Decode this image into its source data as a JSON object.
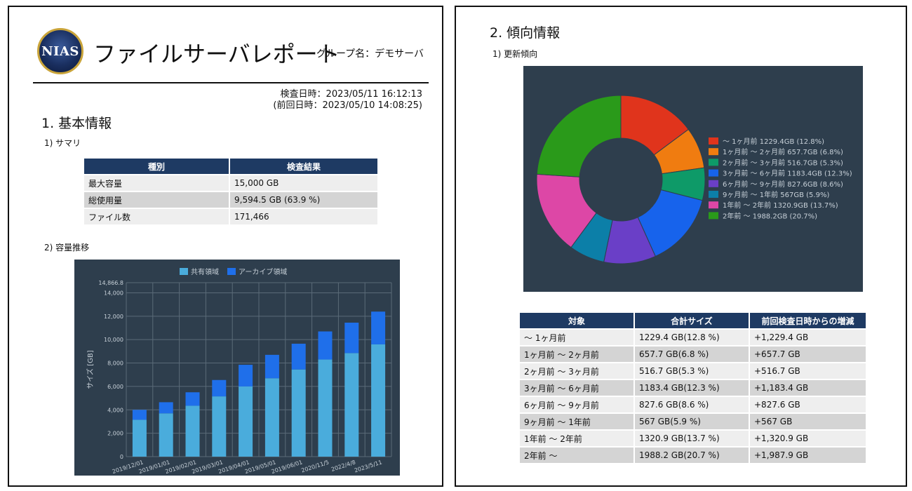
{
  "page1": {
    "logo_text": "NIAS",
    "title": "ファイルサーバレポート",
    "group_name": "グループ名：デモサーバ",
    "inspect_date": "検査日時：2023/05/11 16:12:13",
    "prev_date": "(前回日時：2023/05/10 14:08:25)",
    "section1_heading": "1. 基本情報",
    "summary_heading": "1) サマリ",
    "summary_table": {
      "headers": [
        "種別",
        "検査結果"
      ],
      "rows": [
        [
          "最大容量",
          "15,000 GB"
        ],
        [
          "総使用量",
          "9,594.5 GB (63.9 %)"
        ],
        [
          "ファイル数",
          "171,466"
        ]
      ]
    },
    "capacity_heading": "2) 容量推移"
  },
  "page2": {
    "section2_heading": "2. 傾向情報",
    "update_heading": "1) 更新傾向",
    "trend_table": {
      "headers": [
        "対象",
        "合計サイズ",
        "前回検査日時からの増減"
      ],
      "rows": [
        [
          "〜 1ヶ月前",
          "1229.4 GB(12.8 %)",
          "+1,229.4 GB"
        ],
        [
          "1ヶ月前 〜 2ヶ月前",
          "657.7 GB(6.8 %)",
          "+657.7 GB"
        ],
        [
          "2ヶ月前 〜 3ヶ月前",
          "516.7 GB(5.3 %)",
          "+516.7 GB"
        ],
        [
          "3ヶ月前 〜 6ヶ月前",
          "1183.4 GB(12.3 %)",
          "+1,183.4 GB"
        ],
        [
          "6ヶ月前 〜 9ヶ月前",
          "827.6 GB(8.6 %)",
          "+827.6 GB"
        ],
        [
          "9ヶ月前 〜 1年前",
          "567 GB(5.9 %)",
          "+567 GB"
        ],
        [
          "1年前 〜 2年前",
          "1320.9 GB(13.7 %)",
          "+1,320.9 GB"
        ],
        [
          "2年前 〜",
          "1988.2 GB(20.7 %)",
          "+1,987.9 GB"
        ]
      ]
    }
  },
  "chart_data": [
    {
      "type": "bar",
      "stacked": true,
      "categories": [
        "2019/12/01",
        "2019/01/01",
        "2019/02/01",
        "2019/03/01",
        "2019/04/01",
        "2019/05/01",
        "2019/06/01",
        "2020/11/5",
        "2022/4/8",
        "2023/5/11"
      ],
      "series": [
        {
          "name": "共有領域",
          "color": "#4aacdc",
          "values": [
            3150,
            3700,
            4350,
            5150,
            6000,
            6700,
            7450,
            8300,
            8850,
            9594.5
          ]
        },
        {
          "name": "アーカイブ領域",
          "color": "#1f6fea",
          "values": [
            850,
            950,
            1150,
            1400,
            1850,
            2000,
            2200,
            2400,
            2600,
            2800
          ]
        }
      ],
      "ylabel": "サイズ [GB]",
      "ylim": [
        0,
        14866.8
      ],
      "yticks": [
        0,
        2000,
        4000,
        6000,
        8000,
        10000,
        12000,
        14000
      ],
      "ytick_labels": [
        "0",
        "2,000",
        "4,000",
        "6,000",
        "8,000",
        "10,000",
        "12,000",
        "14,000"
      ],
      "ymax_label": "14,866.8",
      "legend": "top",
      "grid": true,
      "background": "#2e3e4d"
    },
    {
      "type": "pie",
      "donut": true,
      "labels": [
        "〜 1ヶ月前 1229.4GB (12.8%)",
        "1ヶ月前 〜 2ヶ月前 657.7GB (6.8%)",
        "2ヶ月前 〜 3ヶ月前 516.7GB (5.3%)",
        "3ヶ月前 〜 6ヶ月前 1183.4GB (12.3%)",
        "6ヶ月前 〜 9ヶ月前 827.6GB (8.6%)",
        "9ヶ月前 〜 1年前 567GB (5.9%)",
        "1年前 〜 2年前 1320.9GB (13.7%)",
        "2年前 〜 1988.2GB (20.7%)"
      ],
      "values": [
        1229.4,
        657.7,
        516.7,
        1183.4,
        827.6,
        567,
        1320.9,
        1988.2
      ],
      "colors": [
        "#e0341c",
        "#f07c10",
        "#0e9a68",
        "#1763ec",
        "#6a3fc7",
        "#0c7fa8",
        "#dd47a6",
        "#2a9a1a"
      ],
      "legend": "right",
      "background": "#2e3e4d"
    }
  ]
}
